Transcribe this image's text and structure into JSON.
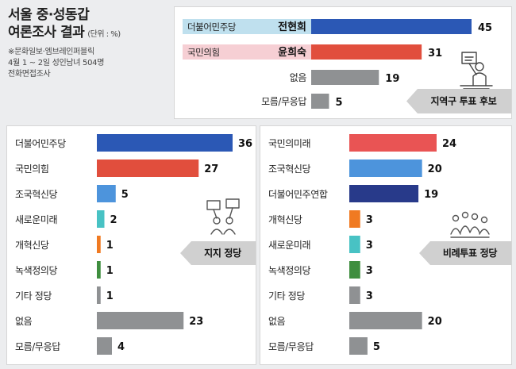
{
  "header": {
    "title_line1": "서울 중·성동갑",
    "title_line2": "여론조사 결과",
    "unit": "(단위 : %)",
    "source_line1": "※문화일보·엠브레인퍼블릭",
    "source_line2": "4월 1 ~ 2일 성인남녀 504명",
    "source_line3": "전화면접조사"
  },
  "colors": {
    "dem": "#2b58b5",
    "ppp": "#e14e3d",
    "rebuild": "#4d94dc",
    "newfuture": "#48c2c4",
    "reform": "#f07a22",
    "green": "#3f8e3f",
    "gray": "#8f9193",
    "ppp_future": "#e95454",
    "dem_union": "#283a8a",
    "dem_label_bg": "#bfe0ee",
    "ppp_label_bg": "#f6cfd4",
    "pointer": "#d0d0d0"
  },
  "chart_data": [
    {
      "type": "bar",
      "title": "지역구 투표 후보",
      "categories": [
        "더불어민주당 전현희",
        "국민의힘 윤희숙",
        "없음",
        "모름/무응답"
      ],
      "parties": [
        "더불어민주당",
        "국민의힘",
        "없음",
        "모름/무응답"
      ],
      "candidates": [
        "전현희",
        "윤희숙",
        "",
        ""
      ],
      "values": [
        45,
        31,
        19,
        5
      ],
      "colors": [
        "#2b58b5",
        "#e14e3d",
        "#8f9193",
        "#8f9193"
      ],
      "unit": "%",
      "icon": "voter-ballot-icon"
    },
    {
      "type": "bar",
      "title": "지지 정당",
      "categories": [
        "더불어민주당",
        "국민의힘",
        "조국혁신당",
        "새로운미래",
        "개혁신당",
        "녹색정의당",
        "기타 정당",
        "없음",
        "모름/무응답"
      ],
      "values": [
        36,
        27,
        5,
        2,
        1,
        1,
        1,
        23,
        4
      ],
      "colors": [
        "#2b58b5",
        "#e14e3d",
        "#4d94dc",
        "#48c2c4",
        "#f07a22",
        "#3f8e3f",
        "#8f9193",
        "#8f9193",
        "#8f9193"
      ],
      "unit": "%",
      "icon": "supporters-icon"
    },
    {
      "type": "bar",
      "title": "비례투표 정당",
      "categories": [
        "국민의미래",
        "조국혁신당",
        "더불어민주연합",
        "개혁신당",
        "새로운미래",
        "녹색정의당",
        "기타 정당",
        "없음",
        "모름/무응답"
      ],
      "values": [
        24,
        20,
        19,
        3,
        3,
        3,
        3,
        20,
        5
      ],
      "colors": [
        "#e95454",
        "#4d94dc",
        "#283a8a",
        "#f07a22",
        "#48c2c4",
        "#3f8e3f",
        "#8f9193",
        "#8f9193",
        "#8f9193"
      ],
      "unit": "%",
      "icon": "crowd-icon"
    }
  ]
}
